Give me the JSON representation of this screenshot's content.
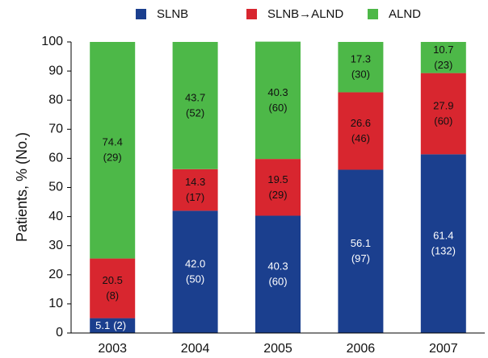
{
  "chart_data": {
    "type": "stacked-bar",
    "y_label": "Patients, % (No.)",
    "categories": [
      "2003",
      "2004",
      "2005",
      "2006",
      "2007"
    ],
    "series": [
      {
        "name": "SLNB",
        "color": "#1b3f8e",
        "values": [
          5.1,
          42.0,
          40.3,
          56.1,
          61.4
        ],
        "value_labels": [
          "5.1",
          "42.0",
          "40.3",
          "56.1",
          "61.4"
        ],
        "count_labels": [
          "(2)",
          "(50)",
          "(60)",
          "(97)",
          "(132)"
        ],
        "label_color": "#ffffff"
      },
      {
        "name": "SLNB→ALND",
        "color": "#d8262f",
        "values": [
          20.5,
          14.3,
          19.5,
          26.6,
          27.9
        ],
        "value_labels": [
          "20.5",
          "14.3",
          "19.5",
          "26.6",
          "27.9"
        ],
        "count_labels": [
          "(8)",
          "(17)",
          "(29)",
          "(46)",
          "(60)"
        ],
        "label_color": "#111111"
      },
      {
        "name": "ALND",
        "color": "#4db848",
        "values": [
          74.4,
          43.7,
          40.3,
          17.3,
          10.7
        ],
        "value_labels": [
          "74.4",
          "43.7",
          "40.3",
          "17.3",
          "10.7"
        ],
        "count_labels": [
          "(29)",
          "(52)",
          "(60)",
          "(30)",
          "(23)"
        ],
        "label_color": "#111111"
      }
    ],
    "ylim": [
      0,
      100
    ],
    "yticks": [
      0,
      10,
      20,
      30,
      40,
      50,
      60,
      70,
      80,
      90,
      100
    ],
    "grid": false
  }
}
